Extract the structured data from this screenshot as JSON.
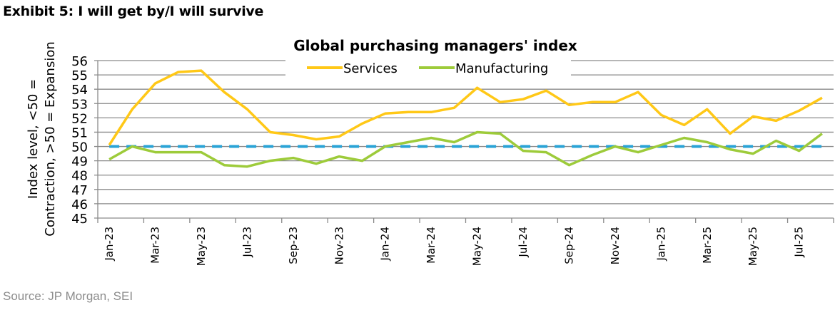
{
  "exhibit_title": "Exhibit 5: I will get by/I will survive",
  "source": "Source: JP Morgan, SEI",
  "chart_data": {
    "type": "line",
    "title": "Global purchasing managers' index",
    "ylabel_line1": "Index level, <50 =",
    "ylabel_line2": "Contraction, >50 = Expansion",
    "xlabel": "",
    "ylim": [
      45,
      56
    ],
    "yticks": [
      45,
      46,
      47,
      48,
      49,
      50,
      51,
      52,
      53,
      54,
      55,
      56
    ],
    "grid": true,
    "legend_position": "top-center",
    "x": [
      "Jan-23",
      "Feb-23",
      "Mar-23",
      "Apr-23",
      "May-23",
      "Jun-23",
      "Jul-23",
      "Aug-23",
      "Sep-23",
      "Oct-23",
      "Nov-23",
      "Dec-23",
      "Jan-24",
      "Feb-24",
      "Mar-24",
      "Apr-24",
      "May-24",
      "Jun-24",
      "Jul-24",
      "Aug-24",
      "Sep-24",
      "Oct-24",
      "Nov-24",
      "Dec-24",
      "Jan-25",
      "Feb-25",
      "Mar-25",
      "Apr-25",
      "May-25",
      "Jun-25",
      "Jul-25",
      "Aug-25"
    ],
    "xtick_labels": [
      "Jan-23",
      "Mar-23",
      "May-23",
      "Jul-23",
      "Sep-23",
      "Nov-23",
      "Jan-24",
      "Mar-24",
      "May-24",
      "Jul-24",
      "Sep-24",
      "Nov-24",
      "Jan-25",
      "Mar-25",
      "May-25",
      "Jul-25"
    ],
    "series": [
      {
        "name": "Services",
        "color": "#ffc817",
        "values": [
          50.1,
          52.6,
          54.4,
          55.2,
          55.3,
          53.8,
          52.6,
          51.0,
          50.8,
          50.5,
          50.7,
          51.6,
          52.3,
          52.4,
          52.4,
          52.7,
          54.1,
          53.1,
          53.3,
          53.9,
          52.9,
          53.1,
          53.1,
          53.8,
          52.2,
          51.5,
          52.6,
          50.9,
          52.1,
          51.8,
          52.5,
          53.4
        ]
      },
      {
        "name": "Manufacturing",
        "color": "#9dcb3a",
        "values": [
          49.1,
          50.0,
          49.6,
          49.6,
          49.6,
          48.7,
          48.6,
          49.0,
          49.2,
          48.8,
          49.3,
          49.0,
          50.0,
          50.3,
          50.6,
          50.3,
          51.0,
          50.9,
          49.7,
          49.6,
          48.7,
          49.4,
          50.0,
          49.6,
          50.1,
          50.6,
          50.3,
          49.8,
          49.5,
          50.4,
          49.7,
          50.9
        ]
      }
    ],
    "reference_line": {
      "value": 50,
      "color": "#2aa3d6",
      "style": "dashed"
    }
  }
}
